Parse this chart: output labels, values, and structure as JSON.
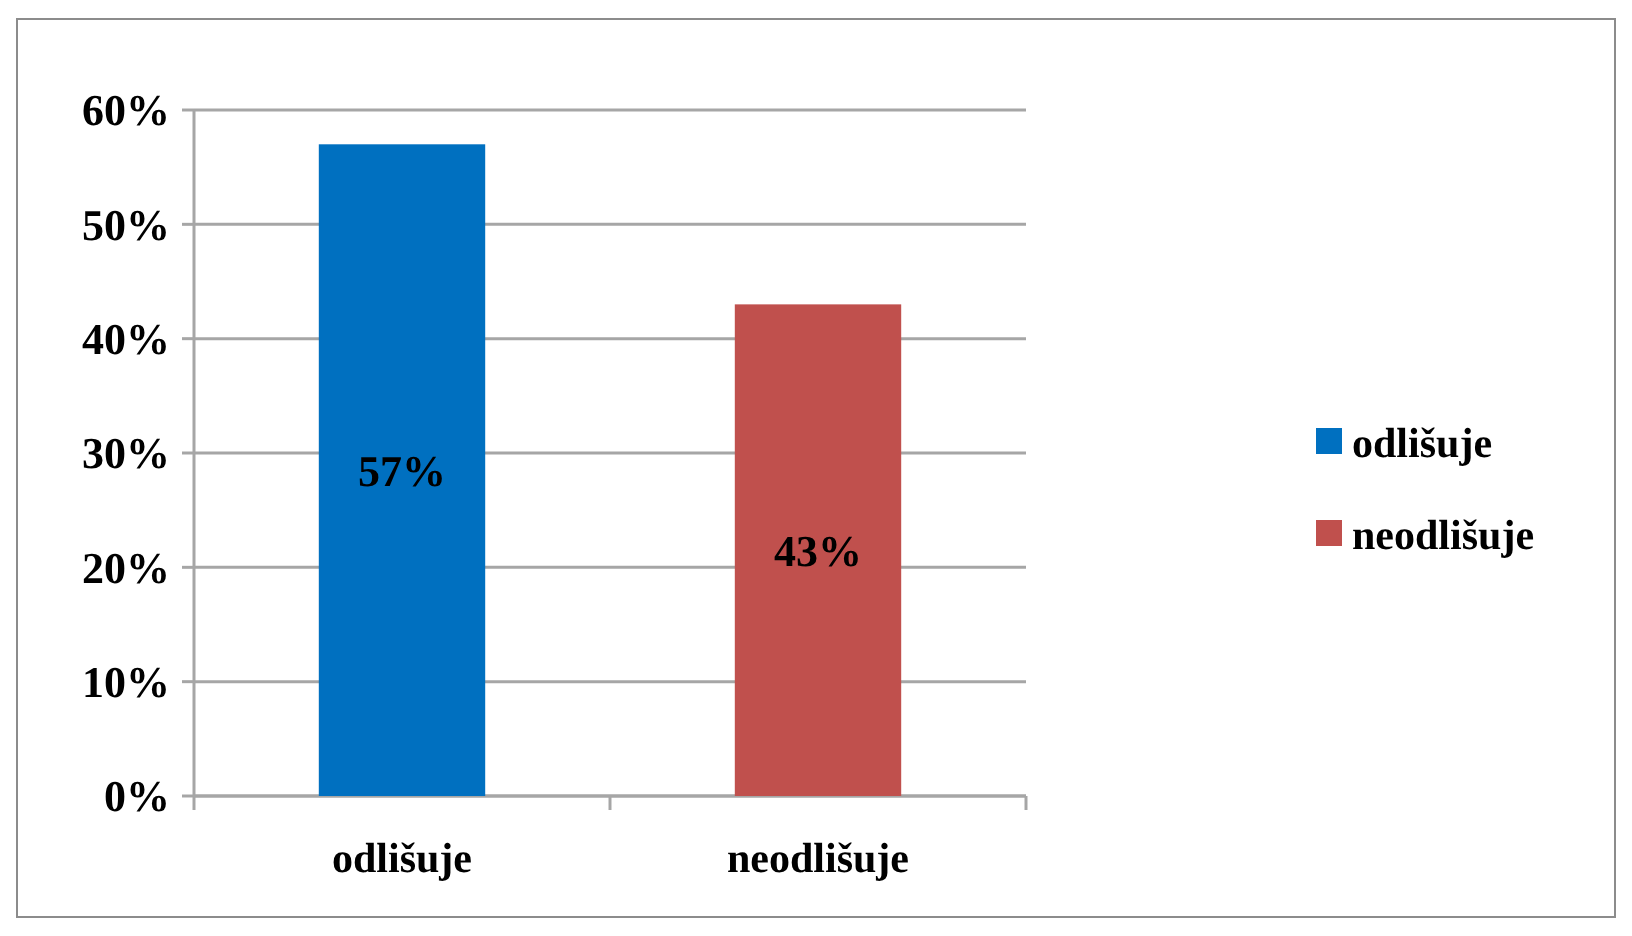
{
  "chart_data": {
    "type": "bar",
    "categories": [
      "odlišuje",
      "neodlišuje"
    ],
    "series": [
      {
        "name": "odlišuje",
        "color": "#0070c0",
        "values": [
          57,
          null
        ],
        "value_labels": [
          "57%",
          null
        ]
      },
      {
        "name": "neodlišuje",
        "color": "#c0504d",
        "values": [
          null,
          43
        ],
        "value_labels": [
          null,
          "43%"
        ]
      }
    ],
    "ylim": [
      0,
      60
    ],
    "yticks": [
      {
        "value": 0,
        "label": "0%"
      },
      {
        "value": 10,
        "label": "10%"
      },
      {
        "value": 20,
        "label": "20%"
      },
      {
        "value": 30,
        "label": "30%"
      },
      {
        "value": 40,
        "label": "40%"
      },
      {
        "value": 50,
        "label": "50%"
      },
      {
        "value": 60,
        "label": "60%"
      }
    ],
    "grid": "y",
    "legend": "right"
  }
}
